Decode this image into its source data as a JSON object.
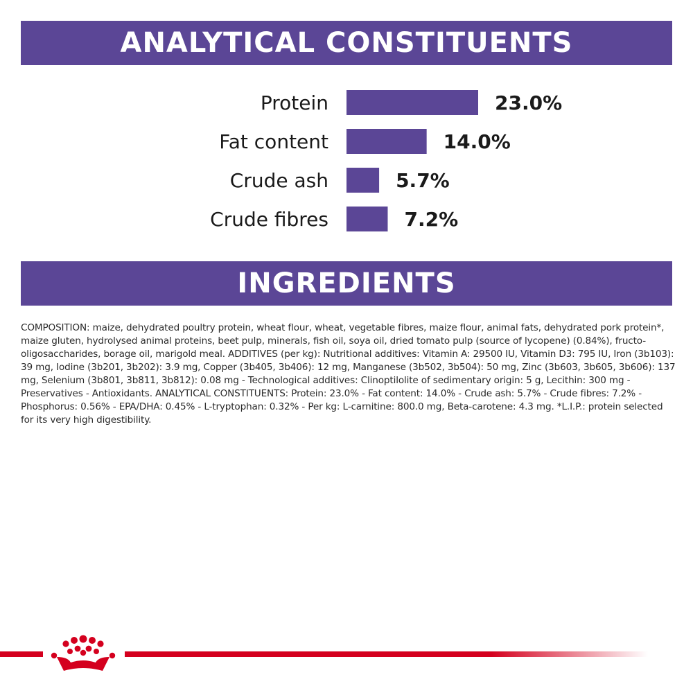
{
  "headers": {
    "analytical": "ANALYTICAL CONSTITUENTS",
    "ingredients": "INGREDIENTS"
  },
  "chart_data": {
    "type": "bar",
    "orientation": "horizontal",
    "categories": [
      "Protein",
      "Fat content",
      "Crude ash",
      "Crude fibres"
    ],
    "values": [
      23.0,
      14.0,
      5.7,
      7.2
    ],
    "value_labels": [
      "23.0%",
      "14.0%",
      "5.7%",
      "7.2%"
    ],
    "unit": "%",
    "bar_color": "#5b4696"
  },
  "composition": "COMPOSITION: maize, dehydrated poultry protein, wheat flour, wheat, vegetable fibres, maize flour, animal fats, dehydrated pork protein*, maize gluten, hydrolysed animal proteins, beet pulp, minerals, fish oil, soya oil, dried tomato pulp (source of lycopene) (0.84%), fructo-oligosaccharides, borage oil, marigold meal. ADDITIVES (per kg): Nutritional additives: Vitamin A: 29500 IU, Vitamin D3: 795 IU, Iron (3b103): 39 mg, Iodine (3b201, 3b202): 3.9 mg, Copper (3b405, 3b406): 12 mg, Manganese (3b502, 3b504): 50 mg, Zinc (3b603, 3b605, 3b606): 137 mg, Selenium (3b801, 3b811, 3b812): 0.08 mg - Technological additives: Clinoptilolite of sedimentary origin: 5 g, Lecithin: 300 mg - Preservatives - Antioxidants. ANALYTICAL CONSTITUENTS: Protein: 23.0% - Fat content: 14.0% - Crude ash: 5.7% - Crude fibres: 7.2% - Phosphorus: 0.56% - EPA/DHA: 0.45% - L-tryptophan: 0.32% - Per kg: L-carnitine: 800.0 mg, Beta-carotene: 4.3 mg. *L.I.P.: protein selected for its very high digestibility.",
  "colors": {
    "brand_purple": "#5b4696",
    "brand_red": "#d4001e"
  },
  "logo": {
    "icon": "crown-icon"
  }
}
